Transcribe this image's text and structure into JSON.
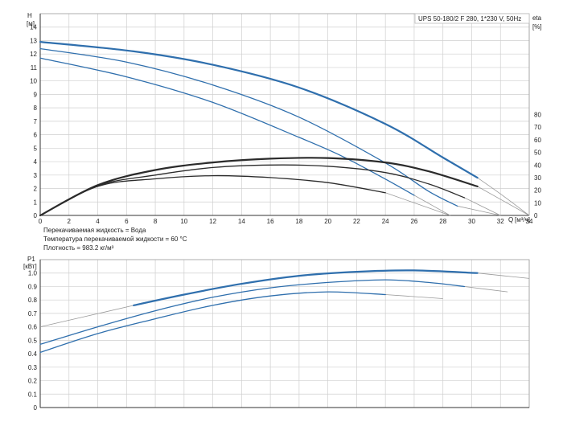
{
  "legend_box": "UPS 50-180/2 F 280, 1*230 V, 50Hz",
  "notes": [
    "Перекачиваемая жидкость = Вода",
    "Температура перекачиваемой жидкости = 60 °C",
    "Плотность = 983.2 кг/м³"
  ],
  "colors": {
    "blue": "#2f6fad",
    "dark": "#2b2b2b",
    "thin": "#9a9a9a",
    "grid": "#cfcfcf"
  },
  "chart_data": [
    {
      "type": "line",
      "x_axis": {
        "label": "Q",
        "unit": "[м³/ч]",
        "ticks": [
          0,
          2,
          4,
          6,
          8,
          10,
          12,
          14,
          16,
          18,
          20,
          22,
          24,
          26,
          28,
          30,
          32,
          34
        ],
        "range": [
          0,
          34
        ]
      },
      "y_axis_left": {
        "label": "H",
        "unit": "[м]",
        "ticks": [
          0,
          1,
          2,
          3,
          4,
          5,
          6,
          7,
          8,
          9,
          10,
          11,
          12,
          13,
          14
        ],
        "range": [
          0,
          15
        ]
      },
      "y_axis_right": {
        "label": "eta",
        "unit": "[%]",
        "ticks": [
          0,
          10,
          20,
          30,
          40,
          50,
          60,
          70,
          80
        ],
        "range": [
          0,
          160
        ]
      },
      "grid": true,
      "head_curves": [
        {
          "points": [
            [
              0,
              12.9
            ],
            [
              6.5,
              12.2
            ],
            [
              12,
              11.2
            ],
            [
              18,
              9.5
            ],
            [
              24,
              6.8
            ],
            [
              28,
              4.3
            ],
            [
              30.4,
              2.8
            ]
          ],
          "continuation": [
            [
              30.4,
              2.8
            ],
            [
              32,
              1.6
            ],
            [
              34,
              0
            ]
          ],
          "start_thin": [
            [
              0,
              12.9
            ],
            [
              6.5,
              12.2
            ]
          ]
        },
        {
          "points": [
            [
              0,
              12.4
            ],
            [
              6,
              11.4
            ],
            [
              12,
              9.7
            ],
            [
              18,
              7.3
            ],
            [
              24,
              3.9
            ],
            [
              27,
              1.8
            ],
            [
              29,
              0.7
            ]
          ],
          "continuation": [
            [
              29,
              0.7
            ],
            [
              32,
              0
            ]
          ]
        },
        {
          "points": [
            [
              0,
              11.7
            ],
            [
              6,
              10.3
            ],
            [
              12,
              8.4
            ],
            [
              18,
              5.8
            ],
            [
              21,
              4.4
            ],
            [
              24,
              2.7
            ],
            [
              26,
              1.5
            ]
          ],
          "continuation": [
            [
              26,
              1.5
            ],
            [
              28.5,
              0
            ]
          ]
        }
      ],
      "eta_curves": [
        {
          "points": [
            [
              0,
              0
            ],
            [
              4,
              24
            ],
            [
              8,
              36
            ],
            [
              12,
              42
            ],
            [
              16,
              45
            ],
            [
              20,
              45.5
            ],
            [
              24,
              42
            ],
            [
              27,
              35
            ],
            [
              30.4,
              23
            ]
          ],
          "continuation": [
            [
              30.4,
              23
            ],
            [
              34,
              0
            ]
          ]
        },
        {
          "points": [
            [
              0,
              0
            ],
            [
              4,
              23.5
            ],
            [
              8,
              32
            ],
            [
              12,
              38
            ],
            [
              16,
              40
            ],
            [
              20,
              39
            ],
            [
              24,
              34
            ],
            [
              27,
              25
            ],
            [
              29.5,
              14
            ]
          ],
          "continuation": [
            [
              29.5,
              14
            ],
            [
              32,
              0
            ]
          ]
        },
        {
          "points": [
            [
              0,
              0
            ],
            [
              4,
              23
            ],
            [
              8,
              29
            ],
            [
              12,
              31.5
            ],
            [
              16,
              30
            ],
            [
              20,
              26
            ],
            [
              24,
              18
            ]
          ],
          "continuation": [
            [
              24,
              18
            ],
            [
              28.5,
              0
            ]
          ]
        }
      ]
    },
    {
      "type": "line",
      "x_axis": {
        "range": [
          0,
          34
        ]
      },
      "y_axis_left": {
        "label": "P1",
        "unit": "[кВт]",
        "ticks": [
          0,
          0.1,
          0.2,
          0.3,
          0.4,
          0.5,
          0.6,
          0.7,
          0.8,
          0.9,
          1.0
        ],
        "tick_labels": [
          "0",
          "0.1",
          "0.2",
          "0.3",
          "0.4",
          "0.5",
          "0.6",
          "0.7",
          "0.8",
          "0.9",
          "1.0"
        ],
        "range": [
          0,
          1.1
        ]
      },
      "grid": true,
      "power_curves": [
        {
          "points": [
            [
              6.5,
              0.76
            ],
            [
              10,
              0.84
            ],
            [
              14,
              0.92
            ],
            [
              18,
              0.98
            ],
            [
              22,
              1.01
            ],
            [
              26,
              1.02
            ],
            [
              30.4,
              1.0
            ]
          ],
          "continuation": [
            [
              30.4,
              1.0
            ],
            [
              34,
              0.96
            ]
          ],
          "start_thin": [
            [
              0,
              0.6
            ],
            [
              6.5,
              0.76
            ]
          ]
        },
        {
          "points": [
            [
              0,
              0.47
            ],
            [
              4,
              0.6
            ],
            [
              8,
              0.72
            ],
            [
              12,
              0.82
            ],
            [
              16,
              0.89
            ],
            [
              20,
              0.93
            ],
            [
              24,
              0.95
            ],
            [
              27,
              0.93
            ],
            [
              29.5,
              0.9
            ]
          ],
          "continuation": [
            [
              29.5,
              0.9
            ],
            [
              32.5,
              0.86
            ]
          ]
        },
        {
          "points": [
            [
              0,
              0.41
            ],
            [
              4,
              0.55
            ],
            [
              8,
              0.66
            ],
            [
              12,
              0.76
            ],
            [
              16,
              0.83
            ],
            [
              20,
              0.86
            ],
            [
              24,
              0.84
            ]
          ],
          "continuation": [
            [
              24,
              0.84
            ],
            [
              28,
              0.81
            ]
          ]
        }
      ]
    }
  ]
}
